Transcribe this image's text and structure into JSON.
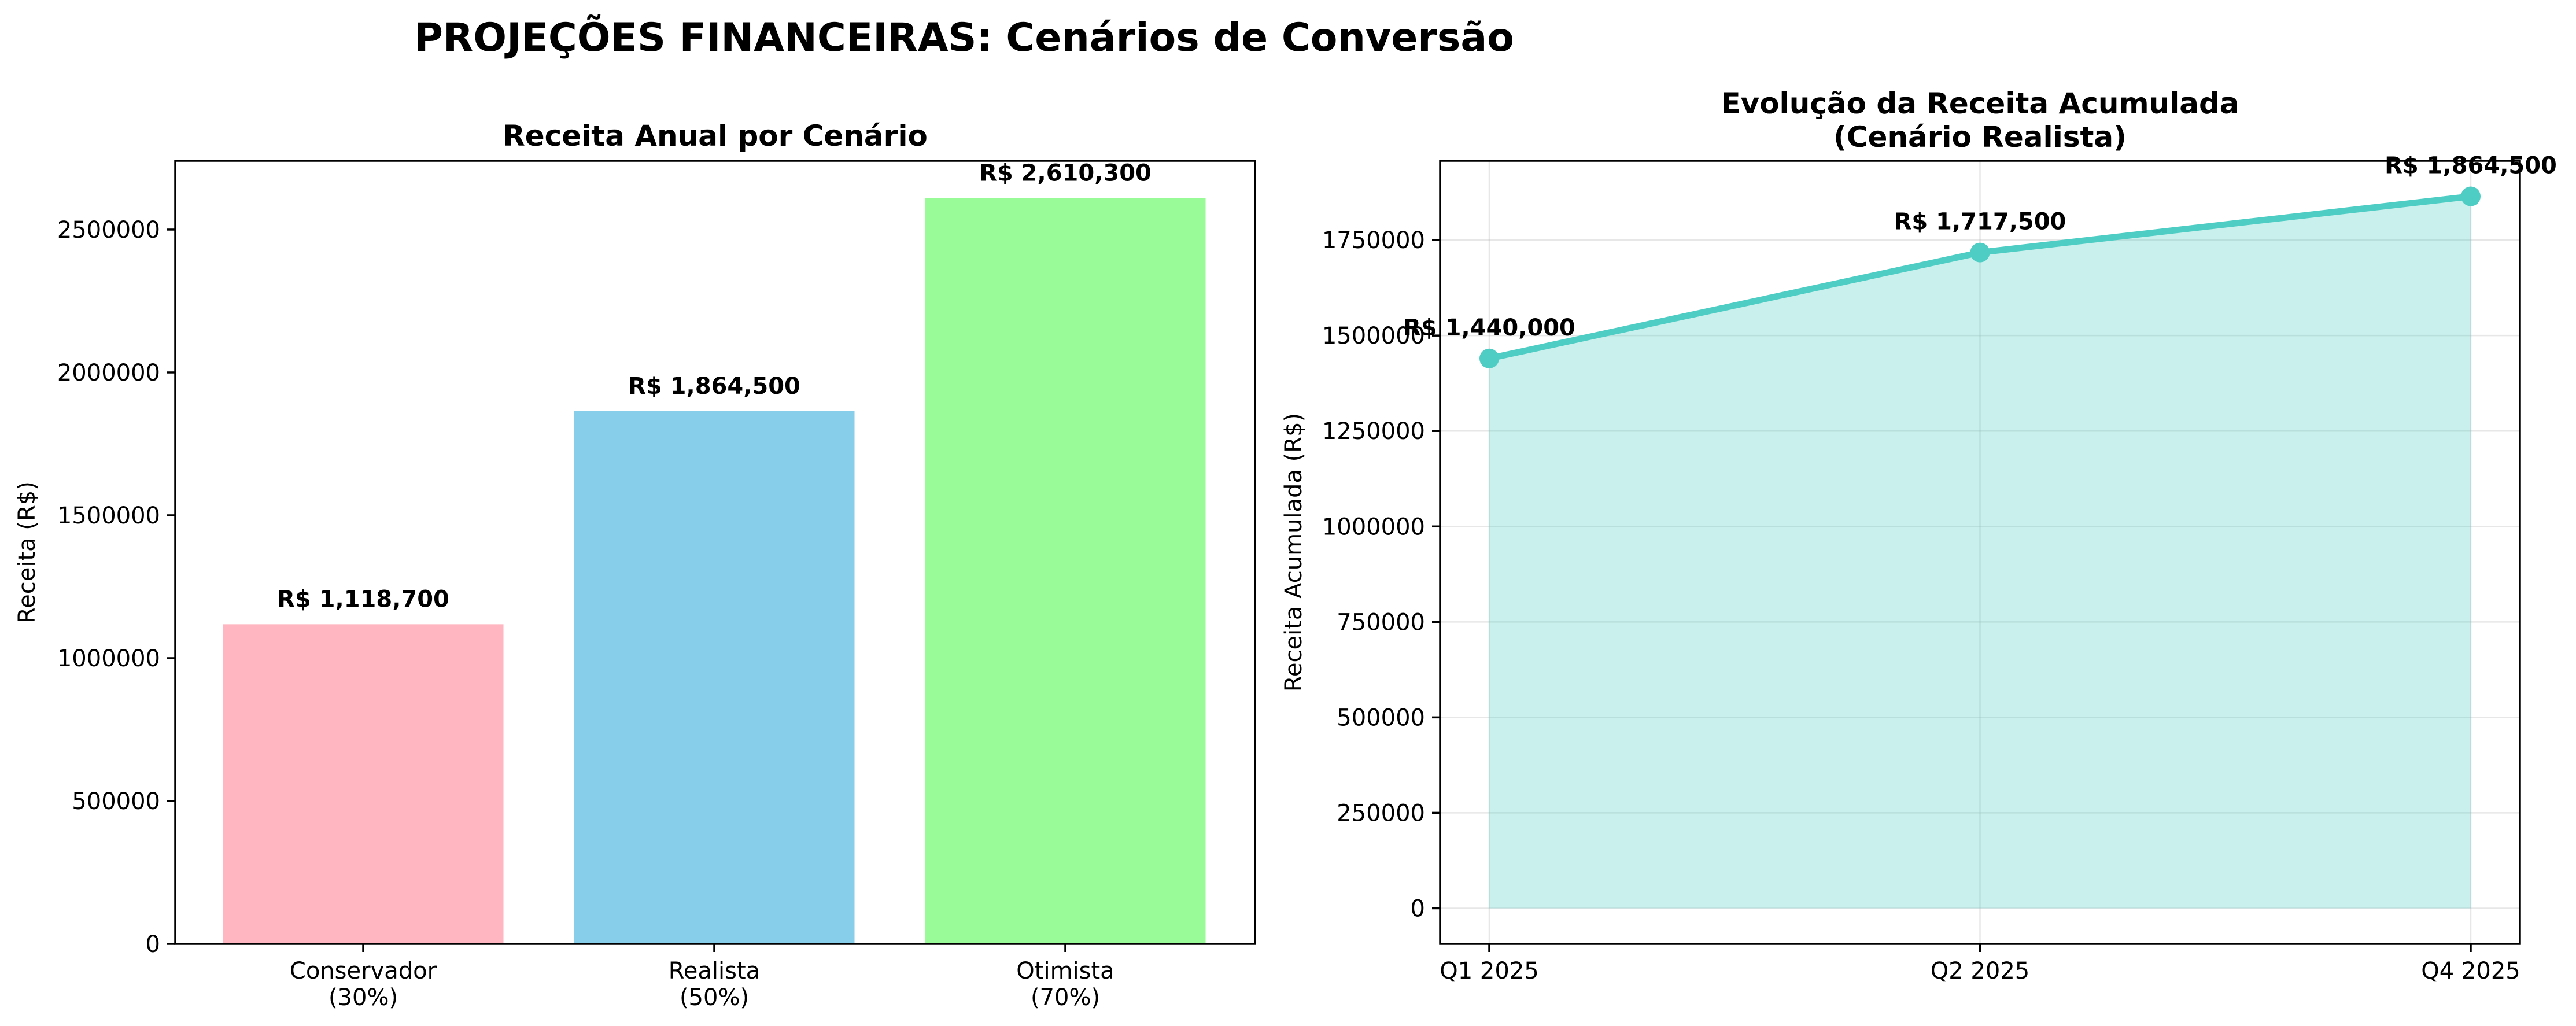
{
  "figure": {
    "suptitle": "PROJEÇÕES FINANCEIRAS: Cenários de Conversão"
  },
  "chart_data": [
    {
      "type": "bar",
      "title": "Receita Anual por Cenário",
      "xlabel": "",
      "ylabel": "Receita (R$)",
      "categories": [
        "Conservador\n(30%)",
        "Realista\n(50%)",
        "Otimista\n(70%)"
      ],
      "values": [
        1118700,
        1864500,
        2610300
      ],
      "data_labels": [
        "R$ 1,118,700",
        "R$ 1,864,500",
        "R$ 2,610,300"
      ],
      "colors": [
        "#FFB6C1",
        "#87CEEB",
        "#98FB98"
      ],
      "ylim": [
        0,
        2740815
      ],
      "yticks": [
        0,
        500000,
        1000000,
        1500000,
        2000000,
        2500000
      ],
      "ytick_labels": [
        "0",
        "500000",
        "1000000",
        "1500000",
        "2000000",
        "2500000"
      ],
      "grid": false
    },
    {
      "type": "area",
      "title": "Evolução da Receita Acumulada\n(Cenário Realista)",
      "xlabel": "",
      "ylabel": "Receita Acumulada (R$)",
      "categories": [
        "Q1 2025",
        "Q2 2025",
        "Q4 2025"
      ],
      "values": [
        1440000,
        1717500,
        1864500
      ],
      "data_labels": [
        "R$ 1,440,000",
        "R$ 1,717,500",
        "R$ 1,864,500"
      ],
      "color": "#4ECDC4",
      "fill_alpha": 0.3,
      "ylim": [
        -93225,
        1957725
      ],
      "yticks": [
        0,
        250000,
        500000,
        750000,
        1000000,
        1250000,
        1500000,
        1750000
      ],
      "ytick_labels": [
        "0",
        "250000",
        "500000",
        "750000",
        "1000000",
        "1250000",
        "1500000",
        "1750000"
      ],
      "grid": true
    }
  ]
}
